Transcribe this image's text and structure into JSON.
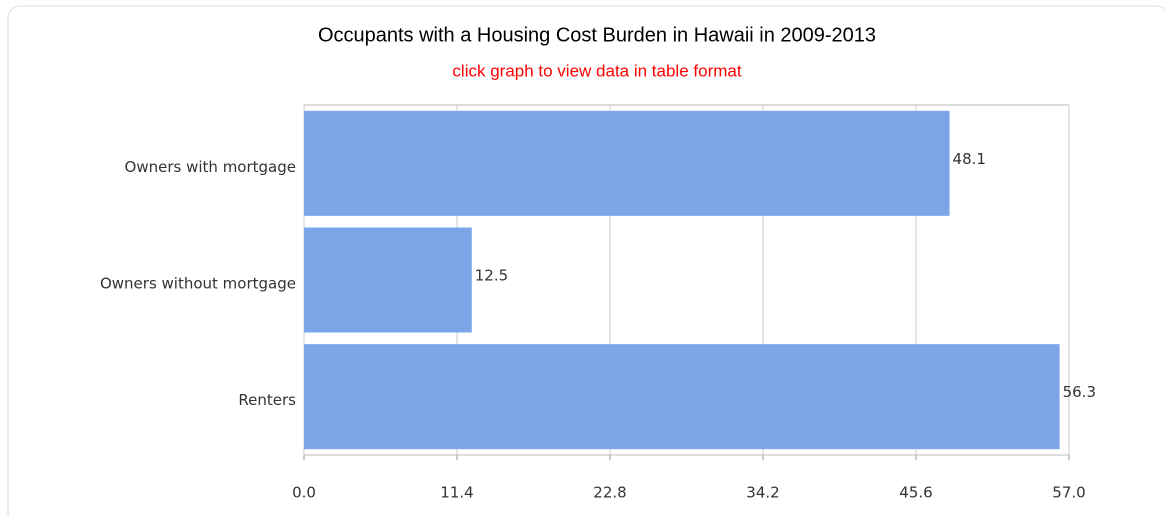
{
  "chart_data": {
    "type": "bar",
    "orientation": "horizontal",
    "title": "Occupants with a Housing Cost Burden in Hawaii in 2009-2013",
    "subtitle": "click graph to view data in table format",
    "categories": [
      "Owners with mortgage",
      "Owners without mortgage",
      "Renters"
    ],
    "values": [
      48.1,
      12.5,
      56.3
    ],
    "color": "#7ba5e6",
    "xlim": [
      0,
      57
    ],
    "xticks": [
      {
        "value": 0,
        "label": "0.0"
      },
      11.4,
      22.8,
      34.2,
      45.6,
      {
        "value": 57,
        "label": "57.0"
      }
    ],
    "grid": true
  }
}
